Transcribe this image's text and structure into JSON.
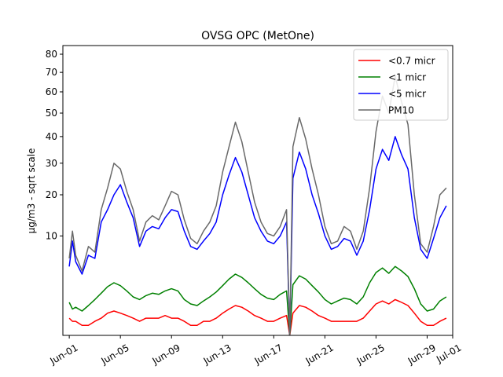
{
  "chart_data": {
    "type": "line",
    "title": "OVSG OPC (MetOne)",
    "xlabel": "",
    "ylabel": "µg/m3 - sqrt scale",
    "x_range": [
      "2020-05-31T12:00",
      "2020-07-01T00:00"
    ],
    "ylim": [
      0,
      85
    ],
    "y_scale": "sqrt",
    "y_ticks": [
      10,
      20,
      30,
      40,
      50,
      60,
      70,
      80
    ],
    "x_tick_labels": [
      {
        "date": "2020-06-01",
        "label": "Jun-01"
      },
      {
        "date": "2020-06-05",
        "label": "Jun-05"
      },
      {
        "date": "2020-06-09",
        "label": "Jun-09"
      },
      {
        "date": "2020-06-13",
        "label": "Jun-13"
      },
      {
        "date": "2020-06-17",
        "label": "Jun-17"
      },
      {
        "date": "2020-06-21",
        "label": "Jun-21"
      },
      {
        "date": "2020-06-25",
        "label": "Jun-25"
      },
      {
        "date": "2020-06-29",
        "label": "Jun-29"
      },
      {
        "date": "2020-07-01",
        "label": "Jul-01"
      }
    ],
    "legend_position": "top-right",
    "grid": false,
    "series": [
      {
        "name": "<0.7 micr",
        "color": "#ff0000",
        "points": [
          [
            "2020-06-01T00:00",
            0.3
          ],
          [
            "2020-06-01T06:00",
            0.2
          ],
          [
            "2020-06-01T12:00",
            0.2
          ],
          [
            "2020-06-02T00:00",
            0.1
          ],
          [
            "2020-06-02T12:00",
            0.1
          ],
          [
            "2020-06-03T00:00",
            0.2
          ],
          [
            "2020-06-03T12:00",
            0.3
          ],
          [
            "2020-06-04T00:00",
            0.5
          ],
          [
            "2020-06-04T12:00",
            0.6
          ],
          [
            "2020-06-05T00:00",
            0.5
          ],
          [
            "2020-06-05T12:00",
            0.4
          ],
          [
            "2020-06-06T00:00",
            0.3
          ],
          [
            "2020-06-06T12:00",
            0.2
          ],
          [
            "2020-06-07T00:00",
            0.3
          ],
          [
            "2020-06-07T12:00",
            0.3
          ],
          [
            "2020-06-08T00:00",
            0.3
          ],
          [
            "2020-06-08T12:00",
            0.4
          ],
          [
            "2020-06-09T00:00",
            0.3
          ],
          [
            "2020-06-09T12:00",
            0.3
          ],
          [
            "2020-06-10T00:00",
            0.2
          ],
          [
            "2020-06-10T12:00",
            0.1
          ],
          [
            "2020-06-11T00:00",
            0.1
          ],
          [
            "2020-06-11T12:00",
            0.2
          ],
          [
            "2020-06-12T00:00",
            0.2
          ],
          [
            "2020-06-12T12:00",
            0.3
          ],
          [
            "2020-06-13T00:00",
            0.5
          ],
          [
            "2020-06-13T12:00",
            0.7
          ],
          [
            "2020-06-14T00:00",
            0.9
          ],
          [
            "2020-06-14T12:00",
            0.8
          ],
          [
            "2020-06-15T00:00",
            0.6
          ],
          [
            "2020-06-15T12:00",
            0.4
          ],
          [
            "2020-06-16T00:00",
            0.3
          ],
          [
            "2020-06-16T12:00",
            0.2
          ],
          [
            "2020-06-17T00:00",
            0.2
          ],
          [
            "2020-06-17T12:00",
            0.3
          ],
          [
            "2020-06-18T00:00",
            0.4
          ],
          [
            "2020-06-18T06:00",
            0.0
          ],
          [
            "2020-06-18T12:00",
            0.5
          ],
          [
            "2020-06-19T00:00",
            0.9
          ],
          [
            "2020-06-19T12:00",
            0.8
          ],
          [
            "2020-06-20T00:00",
            0.6
          ],
          [
            "2020-06-20T12:00",
            0.4
          ],
          [
            "2020-06-21T00:00",
            0.3
          ],
          [
            "2020-06-21T12:00",
            0.2
          ],
          [
            "2020-06-22T00:00",
            0.2
          ],
          [
            "2020-06-22T12:00",
            0.2
          ],
          [
            "2020-06-23T00:00",
            0.2
          ],
          [
            "2020-06-23T12:00",
            0.2
          ],
          [
            "2020-06-24T00:00",
            0.3
          ],
          [
            "2020-06-24T12:00",
            0.6
          ],
          [
            "2020-06-25T00:00",
            1.0
          ],
          [
            "2020-06-25T12:00",
            1.2
          ],
          [
            "2020-06-26T00:00",
            1.0
          ],
          [
            "2020-06-26T12:00",
            1.3
          ],
          [
            "2020-06-27T00:00",
            1.1
          ],
          [
            "2020-06-27T12:00",
            0.9
          ],
          [
            "2020-06-28T00:00",
            0.5
          ],
          [
            "2020-06-28T12:00",
            0.2
          ],
          [
            "2020-06-29T00:00",
            0.1
          ],
          [
            "2020-06-29T12:00",
            0.1
          ],
          [
            "2020-06-30T00:00",
            0.2
          ],
          [
            "2020-06-30T12:00",
            0.3
          ]
        ]
      },
      {
        "name": "<1 micr",
        "color": "#008000",
        "points": [
          [
            "2020-06-01T00:00",
            1.1
          ],
          [
            "2020-06-01T06:00",
            0.7
          ],
          [
            "2020-06-01T12:00",
            0.8
          ],
          [
            "2020-06-02T00:00",
            0.6
          ],
          [
            "2020-06-02T12:00",
            0.9
          ],
          [
            "2020-06-03T00:00",
            1.3
          ],
          [
            "2020-06-03T12:00",
            1.8
          ],
          [
            "2020-06-04T00:00",
            2.4
          ],
          [
            "2020-06-04T12:00",
            2.8
          ],
          [
            "2020-06-05T00:00",
            2.5
          ],
          [
            "2020-06-05T12:00",
            2.0
          ],
          [
            "2020-06-06T00:00",
            1.5
          ],
          [
            "2020-06-06T12:00",
            1.3
          ],
          [
            "2020-06-07T00:00",
            1.6
          ],
          [
            "2020-06-07T12:00",
            1.8
          ],
          [
            "2020-06-08T00:00",
            1.7
          ],
          [
            "2020-06-08T12:00",
            2.0
          ],
          [
            "2020-06-09T00:00",
            2.2
          ],
          [
            "2020-06-09T12:00",
            2.0
          ],
          [
            "2020-06-10T00:00",
            1.3
          ],
          [
            "2020-06-10T12:00",
            1.0
          ],
          [
            "2020-06-11T00:00",
            0.9
          ],
          [
            "2020-06-11T12:00",
            1.2
          ],
          [
            "2020-06-12T00:00",
            1.5
          ],
          [
            "2020-06-12T12:00",
            1.9
          ],
          [
            "2020-06-13T00:00",
            2.5
          ],
          [
            "2020-06-13T12:00",
            3.2
          ],
          [
            "2020-06-14T00:00",
            3.8
          ],
          [
            "2020-06-14T12:00",
            3.4
          ],
          [
            "2020-06-15T00:00",
            2.8
          ],
          [
            "2020-06-15T12:00",
            2.2
          ],
          [
            "2020-06-16T00:00",
            1.7
          ],
          [
            "2020-06-16T12:00",
            1.4
          ],
          [
            "2020-06-17T00:00",
            1.3
          ],
          [
            "2020-06-17T12:00",
            1.7
          ],
          [
            "2020-06-18T00:00",
            2.0
          ],
          [
            "2020-06-18T06:00",
            0.0
          ],
          [
            "2020-06-18T12:00",
            2.6
          ],
          [
            "2020-06-19T00:00",
            3.6
          ],
          [
            "2020-06-19T12:00",
            3.2
          ],
          [
            "2020-06-20T00:00",
            2.5
          ],
          [
            "2020-06-20T12:00",
            1.9
          ],
          [
            "2020-06-21T00:00",
            1.3
          ],
          [
            "2020-06-21T12:00",
            1.0
          ],
          [
            "2020-06-22T00:00",
            1.2
          ],
          [
            "2020-06-22T12:00",
            1.4
          ],
          [
            "2020-06-23T00:00",
            1.3
          ],
          [
            "2020-06-23T12:00",
            1.0
          ],
          [
            "2020-06-24T00:00",
            1.5
          ],
          [
            "2020-06-24T12:00",
            2.8
          ],
          [
            "2020-06-25T00:00",
            4.0
          ],
          [
            "2020-06-25T12:00",
            4.6
          ],
          [
            "2020-06-26T00:00",
            3.9
          ],
          [
            "2020-06-26T12:00",
            4.8
          ],
          [
            "2020-06-27T00:00",
            4.2
          ],
          [
            "2020-06-27T12:00",
            3.5
          ],
          [
            "2020-06-28T00:00",
            2.2
          ],
          [
            "2020-06-28T12:00",
            1.0
          ],
          [
            "2020-06-29T00:00",
            0.6
          ],
          [
            "2020-06-29T12:00",
            0.7
          ],
          [
            "2020-06-30T00:00",
            1.2
          ],
          [
            "2020-06-30T12:00",
            1.5
          ]
        ]
      },
      {
        "name": "<5 micr",
        "color": "#0000ff",
        "points": [
          [
            "2020-06-01T00:00",
            4.8
          ],
          [
            "2020-06-01T06:00",
            9.0
          ],
          [
            "2020-06-01T12:00",
            5.5
          ],
          [
            "2020-06-02T00:00",
            3.8
          ],
          [
            "2020-06-02T12:00",
            6.5
          ],
          [
            "2020-06-03T00:00",
            6.0
          ],
          [
            "2020-06-03T12:00",
            13.0
          ],
          [
            "2020-06-04T00:00",
            16.0
          ],
          [
            "2020-06-04T12:00",
            20.0
          ],
          [
            "2020-06-05T00:00",
            23.0
          ],
          [
            "2020-06-05T12:00",
            18.0
          ],
          [
            "2020-06-06T00:00",
            14.0
          ],
          [
            "2020-06-06T12:00",
            8.0
          ],
          [
            "2020-06-07T00:00",
            11.0
          ],
          [
            "2020-06-07T12:00",
            12.0
          ],
          [
            "2020-06-08T00:00",
            11.5
          ],
          [
            "2020-06-08T12:00",
            14.0
          ],
          [
            "2020-06-09T00:00",
            16.0
          ],
          [
            "2020-06-09T12:00",
            15.5
          ],
          [
            "2020-06-10T00:00",
            11.0
          ],
          [
            "2020-06-10T12:00",
            8.0
          ],
          [
            "2020-06-11T00:00",
            7.5
          ],
          [
            "2020-06-11T12:00",
            9.0
          ],
          [
            "2020-06-12T00:00",
            10.5
          ],
          [
            "2020-06-12T12:00",
            13.0
          ],
          [
            "2020-06-13T00:00",
            20.0
          ],
          [
            "2020-06-13T12:00",
            26.0
          ],
          [
            "2020-06-14T00:00",
            32.0
          ],
          [
            "2020-06-14T12:00",
            27.0
          ],
          [
            "2020-06-15T00:00",
            20.0
          ],
          [
            "2020-06-15T12:00",
            14.0
          ],
          [
            "2020-06-16T00:00",
            11.0
          ],
          [
            "2020-06-16T12:00",
            9.0
          ],
          [
            "2020-06-17T00:00",
            8.5
          ],
          [
            "2020-06-17T12:00",
            10.0
          ],
          [
            "2020-06-18T00:00",
            13.0
          ],
          [
            "2020-06-18T06:00",
            0.0
          ],
          [
            "2020-06-18T12:00",
            25.0
          ],
          [
            "2020-06-19T00:00",
            34.0
          ],
          [
            "2020-06-19T12:00",
            28.0
          ],
          [
            "2020-06-20T00:00",
            20.0
          ],
          [
            "2020-06-20T12:00",
            15.0
          ],
          [
            "2020-06-21T00:00",
            10.0
          ],
          [
            "2020-06-21T12:00",
            7.5
          ],
          [
            "2020-06-22T00:00",
            8.0
          ],
          [
            "2020-06-22T12:00",
            9.5
          ],
          [
            "2020-06-23T00:00",
            9.0
          ],
          [
            "2020-06-23T12:00",
            6.5
          ],
          [
            "2020-06-24T00:00",
            9.0
          ],
          [
            "2020-06-24T12:00",
            16.0
          ],
          [
            "2020-06-25T00:00",
            28.0
          ],
          [
            "2020-06-25T12:00",
            35.0
          ],
          [
            "2020-06-26T00:00",
            31.0
          ],
          [
            "2020-06-26T12:00",
            40.0
          ],
          [
            "2020-06-27T00:00",
            33.0
          ],
          [
            "2020-06-27T12:00",
            28.0
          ],
          [
            "2020-06-28T00:00",
            14.0
          ],
          [
            "2020-06-28T12:00",
            7.5
          ],
          [
            "2020-06-29T00:00",
            6.0
          ],
          [
            "2020-06-29T12:00",
            9.5
          ],
          [
            "2020-06-30T00:00",
            14.0
          ],
          [
            "2020-06-30T12:00",
            17.0
          ]
        ]
      },
      {
        "name": "PM10",
        "color": "#696969",
        "points": [
          [
            "2020-06-01T00:00",
            6.0
          ],
          [
            "2020-06-01T06:00",
            11.0
          ],
          [
            "2020-06-01T12:00",
            6.5
          ],
          [
            "2020-06-02T00:00",
            4.2
          ],
          [
            "2020-06-02T12:00",
            8.0
          ],
          [
            "2020-06-03T00:00",
            7.0
          ],
          [
            "2020-06-03T12:00",
            16.0
          ],
          [
            "2020-06-04T00:00",
            22.0
          ],
          [
            "2020-06-04T12:00",
            30.0
          ],
          [
            "2020-06-05T00:00",
            28.0
          ],
          [
            "2020-06-05T12:00",
            21.0
          ],
          [
            "2020-06-06T00:00",
            16.0
          ],
          [
            "2020-06-06T12:00",
            9.0
          ],
          [
            "2020-06-07T00:00",
            13.0
          ],
          [
            "2020-06-07T12:00",
            14.5
          ],
          [
            "2020-06-08T00:00",
            13.5
          ],
          [
            "2020-06-08T12:00",
            17.0
          ],
          [
            "2020-06-09T00:00",
            21.0
          ],
          [
            "2020-06-09T12:00",
            20.0
          ],
          [
            "2020-06-10T00:00",
            13.5
          ],
          [
            "2020-06-10T12:00",
            9.5
          ],
          [
            "2020-06-11T00:00",
            8.5
          ],
          [
            "2020-06-11T12:00",
            11.0
          ],
          [
            "2020-06-12T00:00",
            13.0
          ],
          [
            "2020-06-12T12:00",
            17.0
          ],
          [
            "2020-06-13T00:00",
            27.0
          ],
          [
            "2020-06-13T12:00",
            36.0
          ],
          [
            "2020-06-14T00:00",
            46.0
          ],
          [
            "2020-06-14T12:00",
            38.0
          ],
          [
            "2020-06-15T00:00",
            27.0
          ],
          [
            "2020-06-15T12:00",
            18.0
          ],
          [
            "2020-06-16T00:00",
            13.0
          ],
          [
            "2020-06-16T12:00",
            10.5
          ],
          [
            "2020-06-17T00:00",
            10.0
          ],
          [
            "2020-06-17T12:00",
            12.0
          ],
          [
            "2020-06-18T00:00",
            16.0
          ],
          [
            "2020-06-18T06:00",
            0.0
          ],
          [
            "2020-06-18T12:00",
            36.0
          ],
          [
            "2020-06-19T00:00",
            48.0
          ],
          [
            "2020-06-19T12:00",
            39.0
          ],
          [
            "2020-06-20T00:00",
            28.0
          ],
          [
            "2020-06-20T12:00",
            20.0
          ],
          [
            "2020-06-21T00:00",
            12.0
          ],
          [
            "2020-06-21T12:00",
            8.5
          ],
          [
            "2020-06-22T00:00",
            9.0
          ],
          [
            "2020-06-22T12:00",
            12.0
          ],
          [
            "2020-06-23T00:00",
            11.0
          ],
          [
            "2020-06-23T12:00",
            7.5
          ],
          [
            "2020-06-24T00:00",
            11.0
          ],
          [
            "2020-06-24T12:00",
            22.0
          ],
          [
            "2020-06-25T00:00",
            42.0
          ],
          [
            "2020-06-25T12:00",
            58.0
          ],
          [
            "2020-06-26T00:00",
            50.0
          ],
          [
            "2020-06-26T12:00",
            68.0
          ],
          [
            "2020-06-27T00:00",
            55.0
          ],
          [
            "2020-06-27T12:00",
            45.0
          ],
          [
            "2020-06-28T00:00",
            20.0
          ],
          [
            "2020-06-28T12:00",
            8.5
          ],
          [
            "2020-06-29T00:00",
            7.0
          ],
          [
            "2020-06-29T12:00",
            12.0
          ],
          [
            "2020-06-30T00:00",
            20.0
          ],
          [
            "2020-06-30T12:00",
            22.0
          ]
        ]
      }
    ]
  }
}
